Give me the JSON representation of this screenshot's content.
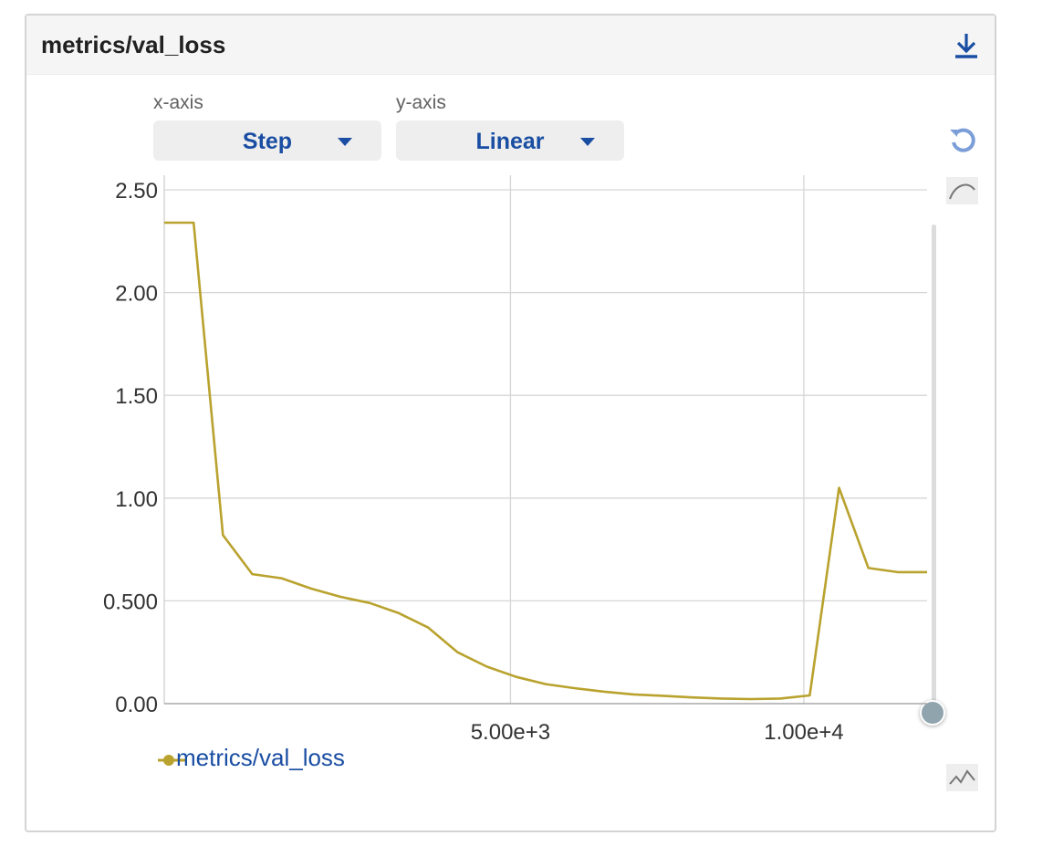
{
  "card": {
    "title": "metrics/val_loss"
  },
  "controls": {
    "x_axis_label": "x-axis",
    "x_axis_value": "Step",
    "y_axis_label": "y-axis",
    "y_axis_value": "Linear"
  },
  "icons": {
    "download": "download-icon",
    "reset": "reset-zoom-icon",
    "smoothing": "smoothing-curve-icon",
    "raw": "raw-line-icon"
  },
  "colors": {
    "series": "#b9a22e",
    "accent": "#1a4ea3",
    "grid": "#d6d6d6"
  },
  "legend": {
    "label": "metrics/val_loss"
  },
  "chart_data": {
    "type": "line",
    "title": "metrics/val_loss",
    "xlabel": "",
    "ylabel": "",
    "xlim": [
      -900,
      12100
    ],
    "ylim": [
      0,
      2.5
    ],
    "grid": true,
    "legend_position": "bottom-left",
    "x_ticks": [
      5000,
      10000
    ],
    "x_tick_labels": [
      "5.00e+3",
      "1.00e+4"
    ],
    "y_ticks": [
      0,
      0.5,
      1.0,
      1.5,
      2.0,
      2.5
    ],
    "y_tick_labels": [
      "0.00",
      "0.500",
      "1.00",
      "1.50",
      "2.00",
      "2.50"
    ],
    "series": [
      {
        "name": "metrics/val_loss",
        "x": [
          -900,
          -400,
          100,
          600,
          1100,
          1600,
          2100,
          2600,
          3100,
          3600,
          4100,
          4600,
          5100,
          5600,
          6100,
          6600,
          7100,
          7600,
          8100,
          8600,
          9100,
          9600,
          10100,
          10600,
          11100,
          11600,
          12100
        ],
        "values": [
          2.34,
          2.34,
          0.82,
          0.63,
          0.61,
          0.56,
          0.52,
          0.49,
          0.44,
          0.37,
          0.25,
          0.18,
          0.13,
          0.095,
          0.075,
          0.058,
          0.045,
          0.038,
          0.03,
          0.025,
          0.022,
          0.025,
          0.04,
          1.05,
          0.66,
          0.64,
          0.64
        ]
      }
    ]
  }
}
